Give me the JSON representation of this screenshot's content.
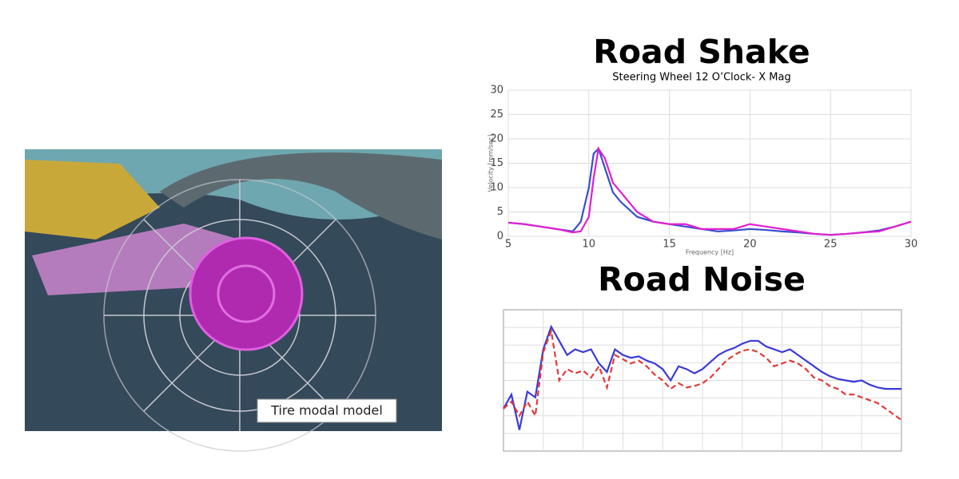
{
  "image": {
    "caption": "Tire modal model"
  },
  "chart_data": [
    {
      "type": "line",
      "title": "Road Shake",
      "subtitle": "Steering Wheel 12 O’Clock- X Mag",
      "x_label": "Frequency [Hz]",
      "y_label": "Velocity [mm/sec]",
      "x": [
        5,
        6,
        7,
        8,
        9,
        9.5,
        10,
        10.3,
        10.6,
        11,
        11.5,
        12,
        13,
        14,
        15,
        16,
        17,
        18,
        19,
        20,
        21,
        22,
        23,
        24,
        25,
        26,
        27,
        28,
        29,
        30
      ],
      "series": [
        {
          "color": "#3a4fd0",
          "values": [
            2.8,
            2.5,
            2,
            1.5,
            1,
            3,
            10,
            17,
            18,
            14,
            9,
            7,
            4,
            3,
            2.5,
            2,
            1.5,
            1,
            1.2,
            1.5,
            1.3,
            1,
            0.8,
            0.5,
            0.3,
            0.5,
            0.8,
            1.2,
            2,
            3
          ]
        },
        {
          "color": "#e020d0",
          "values": [
            2.8,
            2.5,
            2,
            1.5,
            0.8,
            1,
            4,
            12,
            18,
            16,
            11,
            9,
            5,
            3,
            2.5,
            2.5,
            1.5,
            1.5,
            1.5,
            2.5,
            2,
            1.5,
            1,
            0.5,
            0.3,
            0.5,
            0.8,
            1,
            2,
            3
          ]
        }
      ],
      "xlim": [
        5,
        30
      ],
      "ylim": [
        0,
        30
      ],
      "xticks": [
        5,
        10,
        15,
        20,
        25,
        30
      ],
      "yticks": [
        0,
        5,
        10,
        15,
        20,
        25,
        30
      ],
      "grid": true
    },
    {
      "type": "line",
      "title": "Road Noise",
      "x": [
        0,
        2,
        4,
        6,
        8,
        10,
        12,
        14,
        16,
        18,
        20,
        22,
        24,
        26,
        28,
        30,
        32,
        34,
        36,
        38,
        40,
        42,
        44,
        46,
        48,
        50,
        52,
        54,
        56,
        58,
        60,
        62,
        64,
        66,
        68,
        70,
        72,
        74,
        76,
        78,
        80,
        82,
        84,
        86,
        88,
        90,
        92,
        94,
        96,
        98,
        100
      ],
      "series": [
        {
          "color": "#3a3ad8",
          "values": [
            30,
            40,
            15,
            42,
            38,
            72,
            88,
            78,
            68,
            72,
            70,
            72,
            62,
            56,
            72,
            68,
            66,
            67,
            64,
            62,
            58,
            50,
            60,
            58,
            55,
            58,
            63,
            68,
            71,
            73,
            76,
            78,
            78,
            74,
            72,
            70,
            72,
            68,
            64,
            60,
            56,
            53,
            51,
            50,
            49,
            50,
            47,
            45,
            44,
            44,
            44
          ]
        },
        {
          "color": "#e03a3a",
          "dashed": true,
          "values": [
            30,
            35,
            25,
            35,
            25,
            70,
            85,
            50,
            58,
            55,
            57,
            52,
            60,
            45,
            68,
            65,
            62,
            64,
            60,
            54,
            50,
            44,
            48,
            45,
            46,
            48,
            52,
            58,
            64,
            68,
            71,
            72,
            70,
            66,
            60,
            62,
            64,
            62,
            58,
            52,
            50,
            46,
            44,
            40,
            40,
            38,
            36,
            34,
            30,
            26,
            22
          ]
        }
      ],
      "xlim": [
        0,
        100
      ],
      "ylim": [
        0,
        100
      ],
      "grid": true
    }
  ]
}
